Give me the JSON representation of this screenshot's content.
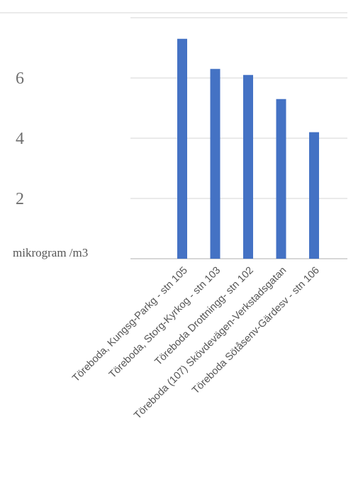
{
  "chart_data": {
    "type": "bar",
    "title": "",
    "xlabel": "",
    "ylabel": "mikrogram /m3",
    "categories": [
      "Töreboda, Kungsg-Parkg - stn 105",
      "Töreboda, Storg-Kyrkog - stn 103",
      "Töreboda Drottningg- stn 102",
      "Töreboda (107) Skövdevägen-Verkstadsgatan",
      "Töreboda Sötåsenv-Gärdesv - stn 106"
    ],
    "values": [
      7.3,
      6.3,
      6.1,
      5.3,
      4.2
    ],
    "yticks": [
      2,
      4,
      6
    ],
    "ylim": [
      0,
      8.4
    ],
    "grid": true,
    "bar_color": "#4472c4"
  }
}
